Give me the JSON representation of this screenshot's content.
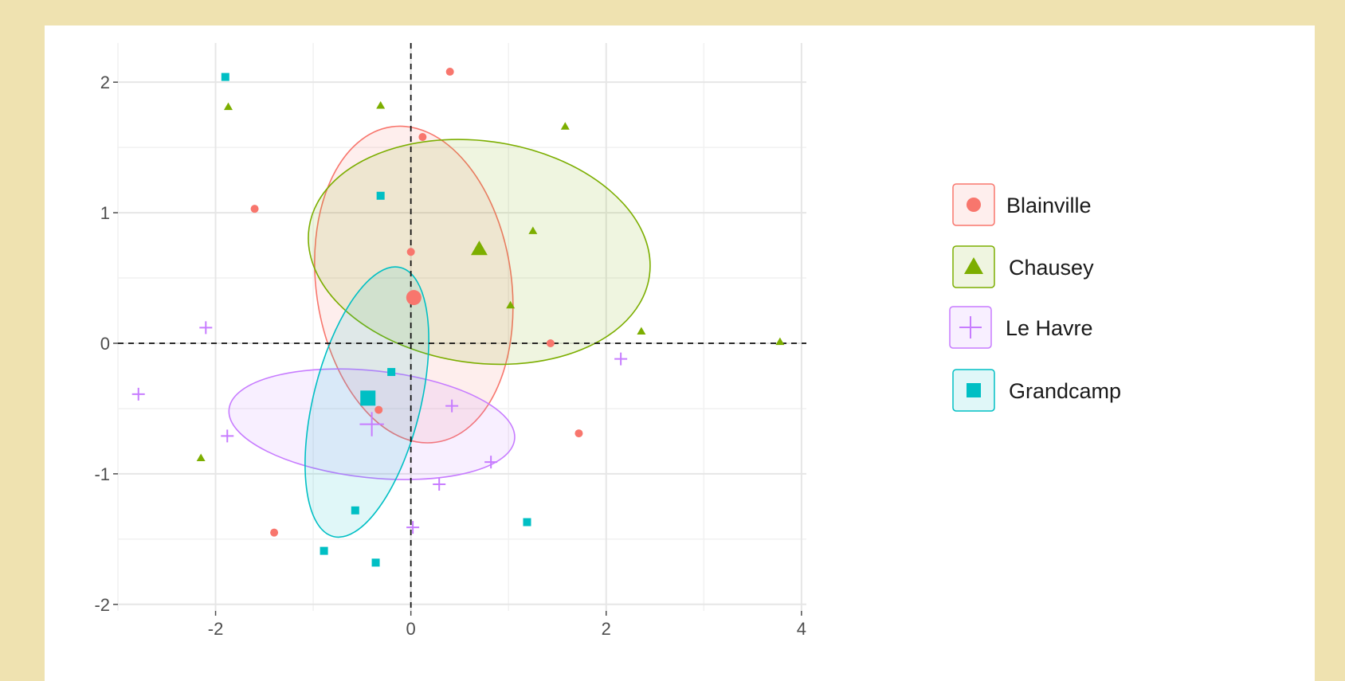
{
  "chart_data": {
    "type": "scatter",
    "title": "",
    "xlabel": "",
    "ylabel": "",
    "xlim": [
      -3.0,
      4.05
    ],
    "ylim": [
      -2.05,
      2.3
    ],
    "x_ticks": [
      -2,
      0,
      2,
      4
    ],
    "y_ticks": [
      -2,
      -1,
      0,
      1,
      2
    ],
    "x_tick_labels": [
      "-2",
      "0",
      "2",
      "4"
    ],
    "y_tick_labels": [
      "-2",
      "-1",
      "0",
      "1",
      "2"
    ],
    "grid": true,
    "reference_lines": {
      "x": 0,
      "y": 0,
      "style": "dashed"
    },
    "legend": {
      "position": "right"
    },
    "series": [
      {
        "name": "Blainville",
        "shape": "circle",
        "color": "#f8766d",
        "points": [
          {
            "x": 0.4,
            "y": 2.08
          },
          {
            "x": 0.12,
            "y": 1.58
          },
          {
            "x": -1.6,
            "y": 1.03
          },
          {
            "x": 0.0,
            "y": 0.7
          },
          {
            "x": 1.43,
            "y": 0.0
          },
          {
            "x": 1.72,
            "y": -0.69
          },
          {
            "x": -0.33,
            "y": -0.51
          },
          {
            "x": -1.4,
            "y": -1.45
          }
        ],
        "mean": {
          "x": 0.03,
          "y": 0.35
        },
        "ellipse": {
          "cx": 0.03,
          "cy": 0.45,
          "rx": 1.0,
          "ry": 1.22,
          "angle": 8
        }
      },
      {
        "name": "Chausey",
        "shape": "triangle",
        "color": "#7cae00",
        "points": [
          {
            "x": -1.87,
            "y": 1.81
          },
          {
            "x": -0.31,
            "y": 1.82
          },
          {
            "x": 1.58,
            "y": 1.66
          },
          {
            "x": 1.25,
            "y": 0.86
          },
          {
            "x": 1.02,
            "y": 0.29
          },
          {
            "x": 2.36,
            "y": 0.09
          },
          {
            "x": 3.78,
            "y": 0.01
          },
          {
            "x": -2.15,
            "y": -0.88
          }
        ],
        "mean": {
          "x": 0.7,
          "y": 0.72
        },
        "ellipse": {
          "cx": 0.7,
          "cy": 0.7,
          "rx": 1.76,
          "ry": 0.85,
          "angle": -8
        }
      },
      {
        "name": "Le Havre",
        "shape": "cross",
        "color": "#c77cff",
        "points": [
          {
            "x": -2.1,
            "y": 0.12
          },
          {
            "x": -2.79,
            "y": -0.39
          },
          {
            "x": -1.88,
            "y": -0.71
          },
          {
            "x": 0.42,
            "y": -0.48
          },
          {
            "x": 0.82,
            "y": -0.91
          },
          {
            "x": 0.29,
            "y": -1.08
          },
          {
            "x": 0.02,
            "y": -1.41
          },
          {
            "x": 2.15,
            "y": -0.12
          }
        ],
        "mean": {
          "x": -0.4,
          "y": -0.62
        },
        "ellipse": {
          "cx": -0.4,
          "cy": -0.62,
          "rx": 1.47,
          "ry": 0.41,
          "angle": -6
        }
      },
      {
        "name": "Grandcamp",
        "shape": "square",
        "color": "#00bfc4",
        "points": [
          {
            "x": -1.9,
            "y": 2.04
          },
          {
            "x": -0.31,
            "y": 1.13
          },
          {
            "x": -0.2,
            "y": -0.22
          },
          {
            "x": -0.57,
            "y": -1.28
          },
          {
            "x": -0.89,
            "y": -1.59
          },
          {
            "x": -0.36,
            "y": -1.68
          },
          {
            "x": 1.19,
            "y": -1.37
          }
        ],
        "mean": {
          "x": -0.44,
          "y": -0.42
        },
        "ellipse": {
          "cx": -0.45,
          "cy": -0.45,
          "rx": 1.42,
          "ry": 0.41,
          "angle": 76
        }
      }
    ]
  },
  "legend_items": [
    {
      "label": "Blainville",
      "shape": "circle",
      "color": "#f8766d"
    },
    {
      "label": "Chausey",
      "shape": "triangle",
      "color": "#7cae00"
    },
    {
      "label": "Le Havre",
      "shape": "cross",
      "color": "#c77cff"
    },
    {
      "label": "Grandcamp",
      "shape": "square",
      "color": "#00bfc4"
    }
  ]
}
